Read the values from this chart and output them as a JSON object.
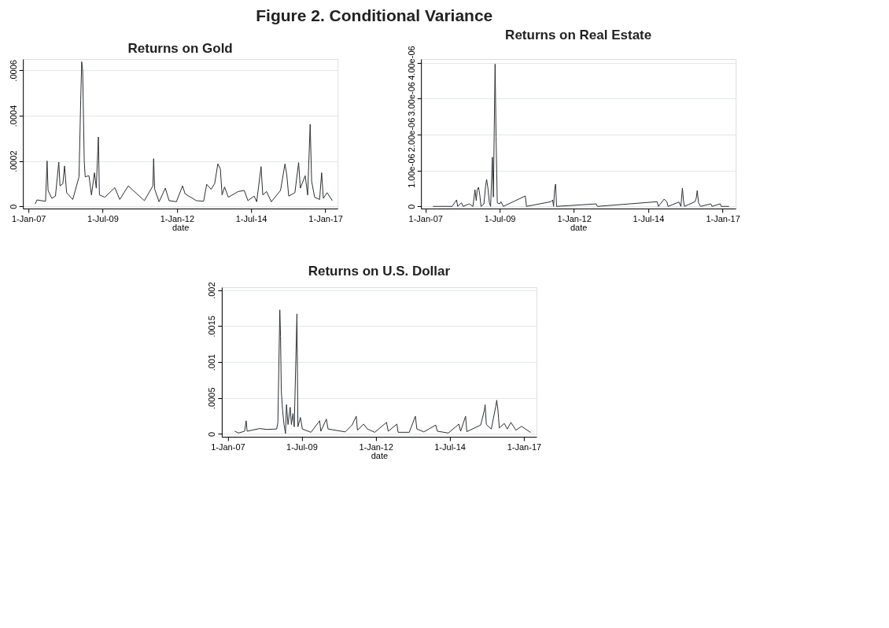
{
  "chart_data": [
    {
      "type": "line",
      "title": "Returns on Gold",
      "xlabel": "date",
      "annotations": [
        "Figure 2. Conditional Variance"
      ],
      "color": "#2b2f33",
      "grid": "y",
      "line_style": "solid",
      "xlim": [
        "2006-10-25",
        "2017-06-01"
      ],
      "xticks": [
        {
          "value": "2007-01-01",
          "label": "1-Jan-07"
        },
        {
          "value": "2009-07-01",
          "label": "1-Jul-09"
        },
        {
          "value": "2012-01-01",
          "label": "1-Jan-12"
        },
        {
          "value": "2014-07-01",
          "label": "1-Jul-14"
        },
        {
          "value": "2017-01-01",
          "label": "1-Jan-17"
        }
      ],
      "ylim": [
        -1e-05,
        0.00065
      ],
      "yticks": [
        0,
        {
          "value": 0.0002,
          "label": ".0002"
        },
        {
          "value": 0.0004,
          "label": ".0004"
        },
        {
          "value": 0.0006,
          "label": ".0006"
        }
      ],
      "x": [
        "2007-03-25",
        "2007-04-15",
        "2007-07-30",
        "2007-08-18",
        "2007-08-30",
        "2007-10-15",
        "2007-11-29",
        "2008-01-09",
        "2008-01-24",
        "2008-02-28",
        "2008-03-20",
        "2008-04-14",
        "2008-06-29",
        "2008-09-14",
        "2008-10-05",
        "2008-10-17",
        "2008-10-29",
        "2008-11-17",
        "2008-11-29",
        "2009-01-14",
        "2009-02-14",
        "2009-03-23",
        "2009-04-14",
        "2009-05-10",
        "2009-05-23",
        "2009-07-29",
        "2009-11-28",
        "2010-01-28",
        "2010-05-13",
        "2010-07-12",
        "2010-11-27",
        "2011-03-12",
        "2011-03-21",
        "2011-04-03",
        "2011-05-27",
        "2011-08-12",
        "2011-09-27",
        "2011-12-26",
        "2012-03-11",
        "2012-04-11",
        "2012-08-26",
        "2012-11-25",
        "2013-01-02",
        "2013-02-25",
        "2013-04-10",
        "2013-05-19",
        "2013-06-19",
        "2013-07-10",
        "2013-08-10",
        "2013-09-25",
        "2014-01-24",
        "2014-04-09",
        "2014-05-24",
        "2014-08-09",
        "2014-09-09",
        "2014-11-02",
        "2014-11-23",
        "2015-01-08",
        "2015-03-08",
        "2015-06-29",
        "2015-08-23",
        "2015-09-14",
        "2015-10-08",
        "2015-12-23",
        "2016-02-07",
        "2016-02-28",
        "2016-04-28",
        "2016-05-28",
        "2016-06-28",
        "2016-07-16",
        "2016-08-22",
        "2016-10-22",
        "2016-11-16",
        "2016-12-07",
        "2017-01-22",
        "2017-03-28"
      ],
      "values": [
        1e-05,
        2.8e-05,
        2.2e-05,
        0.0002,
        7e-05,
        3.5e-05,
        4.5e-05,
        0.000195,
        9e-05,
        0.0001,
        0.000178,
        6e-05,
        3e-05,
        0.00013,
        0.000472,
        0.000638,
        0.000598,
        0.0002,
        0.00013,
        0.000135,
        5e-05,
        0.000148,
        8e-05,
        0.000306,
        5e-05,
        4e-05,
        8.2e-05,
        3e-05,
        9e-05,
        7e-05,
        2.5e-05,
        9e-05,
        0.00021,
        7.5e-05,
        2e-05,
        8e-05,
        2.5e-05,
        2e-05,
        9e-05,
        5.5e-05,
        2.5e-05,
        2.2e-05,
        9.7e-05,
        7.5e-05,
        0.0001,
        0.000187,
        0.000165,
        5e-05,
        8.5e-05,
        4e-05,
        6.5e-05,
        7e-05,
        2.5e-05,
        4.5e-05,
        2e-05,
        0.000175,
        5e-05,
        6.5e-05,
        2e-05,
        7e-05,
        0.000187,
        0.00014,
        4.5e-05,
        6e-05,
        0.000193,
        8e-05,
        0.000135,
        5e-05,
        0.000362,
        0.00011,
        4e-05,
        3e-05,
        0.000148,
        3.5e-05,
        6e-05,
        2.5e-05
      ]
    },
    {
      "type": "line",
      "title": "Returns on Real Estate",
      "xlabel": "date",
      "color": "#2b2f33",
      "grid": "y",
      "line_style": "solid",
      "xlim": [
        "2006-11-08",
        "2017-06-10"
      ],
      "xticks": [
        {
          "value": "2007-01-01",
          "label": "1-Jan-07"
        },
        {
          "value": "2009-07-01",
          "label": "1-Jul-09"
        },
        {
          "value": "2012-01-01",
          "label": "1-Jan-12"
        },
        {
          "value": "2014-07-01",
          "label": "1-Jul-14"
        },
        {
          "value": "2017-01-01",
          "label": "1-Jan-17"
        }
      ],
      "ylim": [
        -6e-08,
        4.1e-06
      ],
      "yticks": [
        0,
        {
          "value": 1e-06,
          "label": "1.00e-06"
        },
        {
          "value": 2e-06,
          "label": "2.00e-06"
        },
        {
          "value": 3e-06,
          "label": "3.00e-06"
        },
        {
          "value": 4e-06,
          "label": "4.00e-06"
        }
      ],
      "x": [
        "2007-04-05",
        "2007-11-25",
        "2008-01-01",
        "2008-01-19",
        "2008-02-01",
        "2008-03-18",
        "2008-04-08",
        "2008-06-22",
        "2008-08-07",
        "2008-09-01",
        "2008-09-16",
        "2008-09-28",
        "2008-10-15",
        "2008-10-30",
        "2008-11-14",
        "2008-12-20",
        "2009-01-10",
        "2009-01-22",
        "2009-02-07",
        "2009-02-25",
        "2009-03-12",
        "2009-04-03",
        "2009-04-15",
        "2009-05-06",
        "2009-05-18",
        "2009-06-02",
        "2009-07-02",
        "2009-07-17",
        "2009-08-16",
        "2010-05-12",
        "2010-05-27",
        "2011-03-23",
        "2011-04-13",
        "2011-04-25",
        "2011-05-07",
        "2011-05-19",
        "2011-06-01",
        "2012-09-30",
        "2012-10-14",
        "2014-10-18",
        "2014-11-03",
        "2015-01-11",
        "2015-02-16",
        "2015-03-01",
        "2015-07-14",
        "2015-08-06",
        "2015-08-25",
        "2015-09-07",
        "2015-09-19",
        "2016-01-26",
        "2016-02-11",
        "2016-02-23",
        "2016-03-10",
        "2016-04-04",
        "2016-08-08",
        "2016-08-23",
        "2016-12-01",
        "2016-12-14",
        "2017-03-20"
      ],
      "values": [
        0,
        0,
        1.2e-07,
        1.8e-07,
        0,
        1e-07,
        0,
        7e-08,
        0,
        4.6e-07,
        1.6e-07,
        4.6e-07,
        5.3e-07,
        3.2e-07,
        0,
        7e-08,
        5.8e-07,
        7.5e-07,
        5.1e-07,
        1e-07,
        0,
        1.37e-06,
        2.6e-07,
        3.96e-06,
        1.94e-06,
        1e-07,
        7e-08,
        1.3e-07,
        0,
        2.9e-07,
        0,
        1.3e-07,
        1.8e-07,
        0,
        4.6e-07,
        6.2e-07,
        0,
        7e-08,
        0,
        1.3e-07,
        0,
        2e-07,
        1.3e-07,
        0,
        1.2e-07,
        0,
        5.1e-07,
        1.6e-07,
        0,
        1.3e-07,
        2.3e-07,
        4.4e-07,
        1e-07,
        0,
        7e-08,
        0,
        7e-08,
        0,
        0
      ]
    },
    {
      "type": "line",
      "title": "Returns on U.S. Dollar",
      "xlabel": "date",
      "color": "#2b2f33",
      "grid": "y",
      "line_style": "solid",
      "xlim": [
        "2006-10-20",
        "2017-06-05"
      ],
      "xticks": [
        {
          "value": "2007-01-01",
          "label": "1-Jan-07"
        },
        {
          "value": "2009-07-01",
          "label": "1-Jul-09"
        },
        {
          "value": "2012-01-01",
          "label": "1-Jan-12"
        },
        {
          "value": "2014-07-01",
          "label": "1-Jul-14"
        },
        {
          "value": "2017-01-01",
          "label": "1-Jan-17"
        }
      ],
      "ylim": [
        -4e-05,
        0.00204
      ],
      "yticks": [
        0,
        {
          "value": 0.0005,
          "label": ".0005"
        },
        {
          "value": 0.001,
          "label": ".001"
        },
        {
          "value": 0.0015,
          "label": ".0015"
        },
        {
          "value": 0.002,
          "label": ".002"
        }
      ],
      "x": [
        "2007-03-30",
        "2007-05-14",
        "2007-07-29",
        "2007-08-17",
        "2007-08-29",
        "2008-01-28",
        "2008-04-27",
        "2008-08-27",
        "2008-09-11",
        "2008-10-05",
        "2008-10-14",
        "2008-10-23",
        "2008-11-08",
        "2008-11-26",
        "2008-12-14",
        "2008-12-26",
        "2009-01-14",
        "2009-02-10",
        "2009-02-25",
        "2009-03-16",
        "2009-04-01",
        "2009-05-04",
        "2009-05-16",
        "2009-06-16",
        "2009-07-10",
        "2009-10-24",
        "2010-02-08",
        "2010-02-23",
        "2010-05-02",
        "2010-05-23",
        "2010-12-21",
        "2011-03-15",
        "2011-05-06",
        "2011-05-20",
        "2011-08-05",
        "2011-09-20",
        "2011-12-20",
        "2012-05-13",
        "2012-06-03",
        "2012-09-18",
        "2012-10-03",
        "2013-02-17",
        "2013-05-04",
        "2013-05-22",
        "2013-08-16",
        "2014-01-09",
        "2014-01-30",
        "2014-06-14",
        "2014-10-22",
        "2014-11-13",
        "2015-01-13",
        "2015-01-28",
        "2015-07-18",
        "2015-09-02",
        "2015-09-11",
        "2015-09-26",
        "2015-11-26",
        "2016-01-20",
        "2016-02-01",
        "2016-02-16",
        "2016-03-04",
        "2016-05-04",
        "2016-06-10",
        "2016-07-25",
        "2016-09-24",
        "2016-12-03",
        "2017-03-25"
      ],
      "values": [
        3.7e-05,
        1.2e-05,
        3.7e-05,
        0.000182,
        3.7e-05,
        7.4e-05,
        6.2e-05,
        6.8e-05,
        0.00016,
        0.001725,
        0.001355,
        0.000598,
        0.00033,
        0.00013,
        6e-06,
        0.000407,
        0.00013,
        0.00037,
        0.00013,
        0.000283,
        9.9e-05,
        0.00167,
        9.9e-05,
        0.000228,
        6.8e-05,
        2.2e-05,
        0.000182,
        3.7e-05,
        0.000206,
        6.8e-05,
        2.8e-05,
        0.000123,
        0.000246,
        5.2e-05,
        0.000136,
        6.8e-05,
        2.2e-05,
        0.00016,
        3.7e-05,
        0.000136,
        2.2e-05,
        2.2e-05,
        0.000246,
        6.8e-05,
        2.8e-05,
        0.000123,
        3.7e-05,
        1.2e-05,
        0.000136,
        3.7e-05,
        0.000246,
        3.1e-05,
        0.000123,
        0.00033,
        0.000407,
        0.00013,
        6.8e-05,
        0.000382,
        0.000468,
        0.00033,
        8.3e-05,
        0.000145,
        6.8e-05,
        0.00016,
        5.2e-05,
        0.000105,
        2e-05
      ]
    }
  ]
}
